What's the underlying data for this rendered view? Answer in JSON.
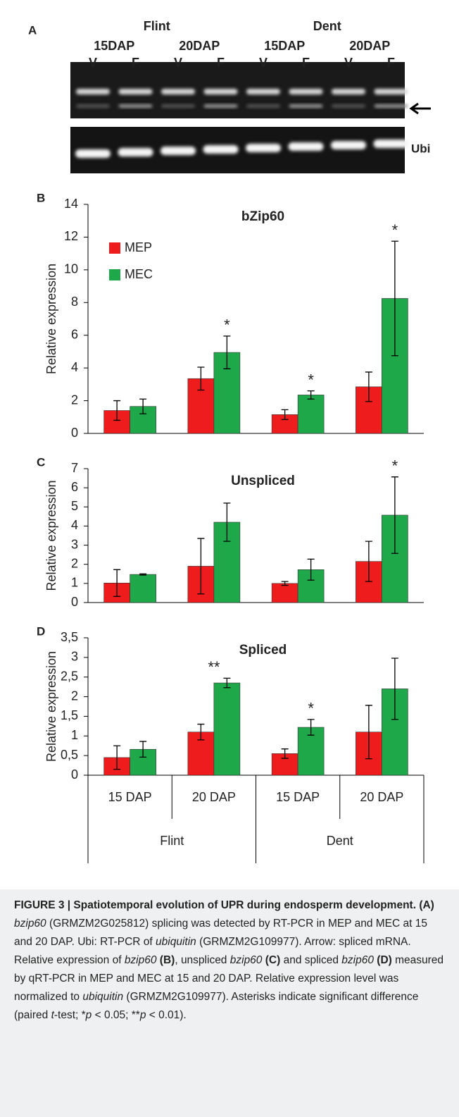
{
  "panel_a": {
    "letter": "A",
    "groups": [
      "Flint",
      "Dent"
    ],
    "stages": [
      "15DAP",
      "20DAP",
      "15DAP",
      "20DAP"
    ],
    "lanes": [
      "V",
      "F",
      "V",
      "F",
      "V",
      "F",
      "V",
      "F"
    ],
    "loading_label": "Ubi"
  },
  "chart_data": [
    {
      "type": "bar",
      "panel": "B",
      "title": "bZip60",
      "ylabel": "Relative expression",
      "categories": [
        null,
        null,
        null,
        null
      ],
      "series": [
        {
          "name": "MEP",
          "color": "#ee1c1c",
          "values": [
            1.4,
            3.35,
            1.15,
            2.85
          ],
          "errors": [
            0.6,
            0.7,
            0.3,
            0.9
          ]
        },
        {
          "name": "MEC",
          "color": "#1ea84a",
          "values": [
            1.65,
            4.95,
            2.35,
            8.25
          ],
          "errors": [
            0.45,
            1.0,
            0.25,
            3.5
          ]
        }
      ],
      "significance": [
        null,
        "*",
        "*",
        "*"
      ],
      "ylim": [
        0,
        14
      ],
      "yticks": [
        0,
        2,
        4,
        6,
        8,
        10,
        12,
        14
      ],
      "legend": "upper left"
    },
    {
      "type": "bar",
      "panel": "C",
      "title": "Unspliced",
      "ylabel": "Relative expression",
      "categories": [
        null,
        null,
        null,
        null
      ],
      "series": [
        {
          "name": "MEP",
          "color": "#ee1c1c",
          "values": [
            1.02,
            1.9,
            1.0,
            2.15
          ],
          "errors": [
            0.7,
            1.45,
            0.1,
            1.05
          ]
        },
        {
          "name": "MEC",
          "color": "#1ea84a",
          "values": [
            1.47,
            4.2,
            1.72,
            4.57
          ],
          "errors": [
            0.03,
            1.0,
            0.55,
            2.0
          ]
        }
      ],
      "significance": [
        null,
        null,
        null,
        "*"
      ],
      "ylim": [
        0,
        7
      ],
      "yticks": [
        0,
        1,
        2,
        3,
        4,
        5,
        6,
        7
      ]
    },
    {
      "type": "bar",
      "panel": "D",
      "title": "Spliced",
      "ylabel": "Relative expression",
      "categories": [
        "15 DAP",
        "20 DAP",
        "15 DAP",
        "20 DAP"
      ],
      "groups": [
        "Flint",
        "Dent"
      ],
      "series": [
        {
          "name": "MEP",
          "color": "#ee1c1c",
          "values": [
            0.45,
            1.1,
            0.55,
            1.1
          ],
          "errors": [
            0.3,
            0.2,
            0.12,
            0.68
          ]
        },
        {
          "name": "MEC",
          "color": "#1ea84a",
          "values": [
            0.66,
            2.35,
            1.22,
            2.2
          ],
          "errors": [
            0.2,
            0.12,
            0.2,
            0.78
          ]
        }
      ],
      "significance": [
        null,
        "**",
        "*",
        null
      ],
      "ylim": [
        0,
        3.5
      ],
      "yticks": [
        0,
        {
          "value": 0.5,
          "label": "0,5"
        },
        1,
        {
          "value": 1.5,
          "label": "1,5"
        },
        2,
        {
          "value": 2.5,
          "label": "2,5"
        },
        3,
        {
          "value": 3.5,
          "label": "3,5"
        }
      ]
    }
  ],
  "caption": [
    {
      "text": "FIGURE 3 | Spatiotemporal evolution of UPR during endosperm development. ",
      "style": "bold"
    },
    {
      "text": "(A) ",
      "style": "bold"
    },
    {
      "text": "bzip60",
      "style": "italic"
    },
    {
      "text": " (GRMZM2G025812) splicing was detected by RT-PCR in MEP and MEC at 15 and 20 DAP. Ubi: RT-PCR of ",
      "style": "normal"
    },
    {
      "text": "ubiquitin",
      "style": "italic"
    },
    {
      "text": " (GRMZM2G109977). Arrow: spliced mRNA. Relative expression of ",
      "style": "normal"
    },
    {
      "text": "bzip60",
      "style": "italic"
    },
    {
      "text": " (B)",
      "style": "bold"
    },
    {
      "text": ", unspliced ",
      "style": "normal"
    },
    {
      "text": "bzip60",
      "style": "italic"
    },
    {
      "text": " (C)",
      "style": "bold"
    },
    {
      "text": " and spliced ",
      "style": "normal"
    },
    {
      "text": "bzip60",
      "style": "italic"
    },
    {
      "text": " (D)",
      "style": "bold"
    },
    {
      "text": " measured by qRT-PCR in MEP and MEC at 15 and 20 DAP. Relative expression level was normalized to ",
      "style": "normal"
    },
    {
      "text": "ubiquitin",
      "style": "italic"
    },
    {
      "text": " (GRMZM2G109977). Asterisks indicate significant difference (paired ",
      "style": "normal"
    },
    {
      "text": "t",
      "style": "italic"
    },
    {
      "text": "-test; *",
      "style": "normal"
    },
    {
      "text": "p",
      "style": "italic"
    },
    {
      "text": " < 0.05; **",
      "style": "normal"
    },
    {
      "text": "p",
      "style": "italic"
    },
    {
      "text": " < 0.01).",
      "style": "normal"
    }
  ]
}
